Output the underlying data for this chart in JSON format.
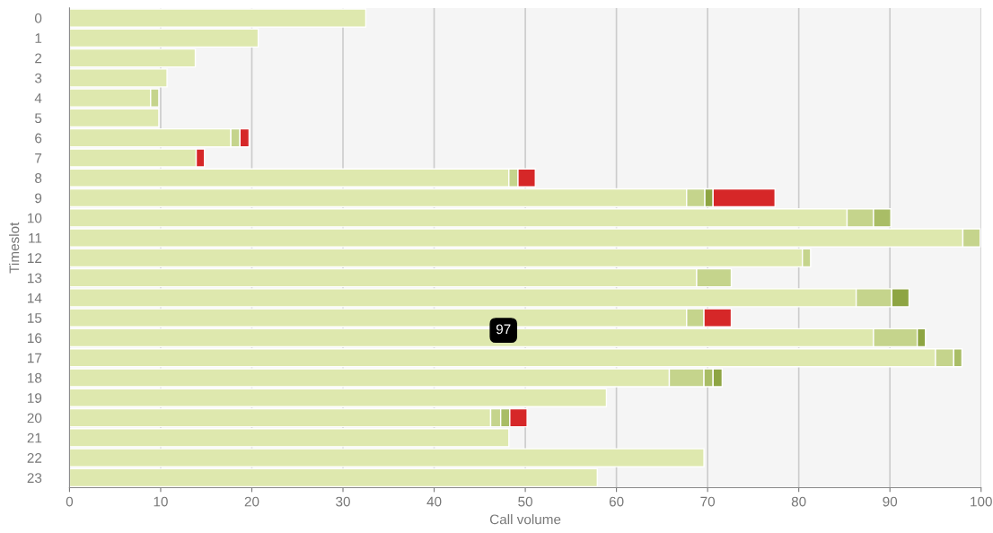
{
  "chart_data": {
    "type": "bar",
    "orientation": "horizontal",
    "stacked": true,
    "xlabel": "Call volume",
    "ylabel": "Timeslot",
    "categories": [
      "0",
      "1",
      "2",
      "3",
      "4",
      "5",
      "6",
      "7",
      "8",
      "9",
      "10",
      "11",
      "12",
      "13",
      "14",
      "15",
      "16",
      "17",
      "18",
      "19",
      "20",
      "21",
      "22",
      "23"
    ],
    "series": [
      {
        "color": "#dee8ae",
        "values": [
          32.5,
          20.7,
          13.8,
          10.7,
          8.9,
          9.8,
          17.7,
          13.9,
          48.2,
          67.7,
          85.3,
          98.0,
          80.4,
          68.8,
          86.3,
          67.7,
          88.2,
          95.0,
          65.8,
          58.9,
          46.2,
          48.2,
          69.6,
          57.9
        ]
      },
      {
        "color": "#c5d48c",
        "values": [
          null,
          null,
          null,
          null,
          0.9,
          null,
          1.0,
          null,
          1.0,
          2.0,
          2.9,
          1.9,
          0.9,
          3.8,
          3.9,
          1.9,
          4.8,
          2.0,
          3.8,
          null,
          1.1,
          null,
          null,
          null
        ]
      },
      {
        "color": "#a9bd66",
        "values": [
          null,
          null,
          null,
          null,
          null,
          null,
          null,
          null,
          null,
          null,
          1.9,
          null,
          null,
          null,
          null,
          null,
          null,
          0.9,
          1.0,
          null,
          1.0,
          null,
          null,
          null
        ]
      },
      {
        "color": "#8ea543",
        "values": [
          null,
          null,
          null,
          null,
          null,
          null,
          null,
          null,
          null,
          0.9,
          null,
          null,
          null,
          null,
          1.9,
          null,
          0.9,
          null,
          1.0,
          null,
          null,
          null,
          null,
          null
        ]
      },
      {
        "color": "#d62728",
        "values": [
          null,
          null,
          null,
          null,
          null,
          null,
          1.0,
          0.9,
          1.9,
          6.8,
          null,
          null,
          null,
          null,
          null,
          3.0,
          null,
          null,
          null,
          null,
          1.9,
          null,
          null,
          null
        ]
      }
    ],
    "xlim": [
      0,
      100
    ],
    "xticks": [
      0,
      10,
      20,
      30,
      40,
      50,
      60,
      70,
      80,
      90,
      100
    ],
    "grid": "x",
    "annotations": [
      {
        "text": "97",
        "x": 47.6,
        "y": "17"
      }
    ]
  }
}
